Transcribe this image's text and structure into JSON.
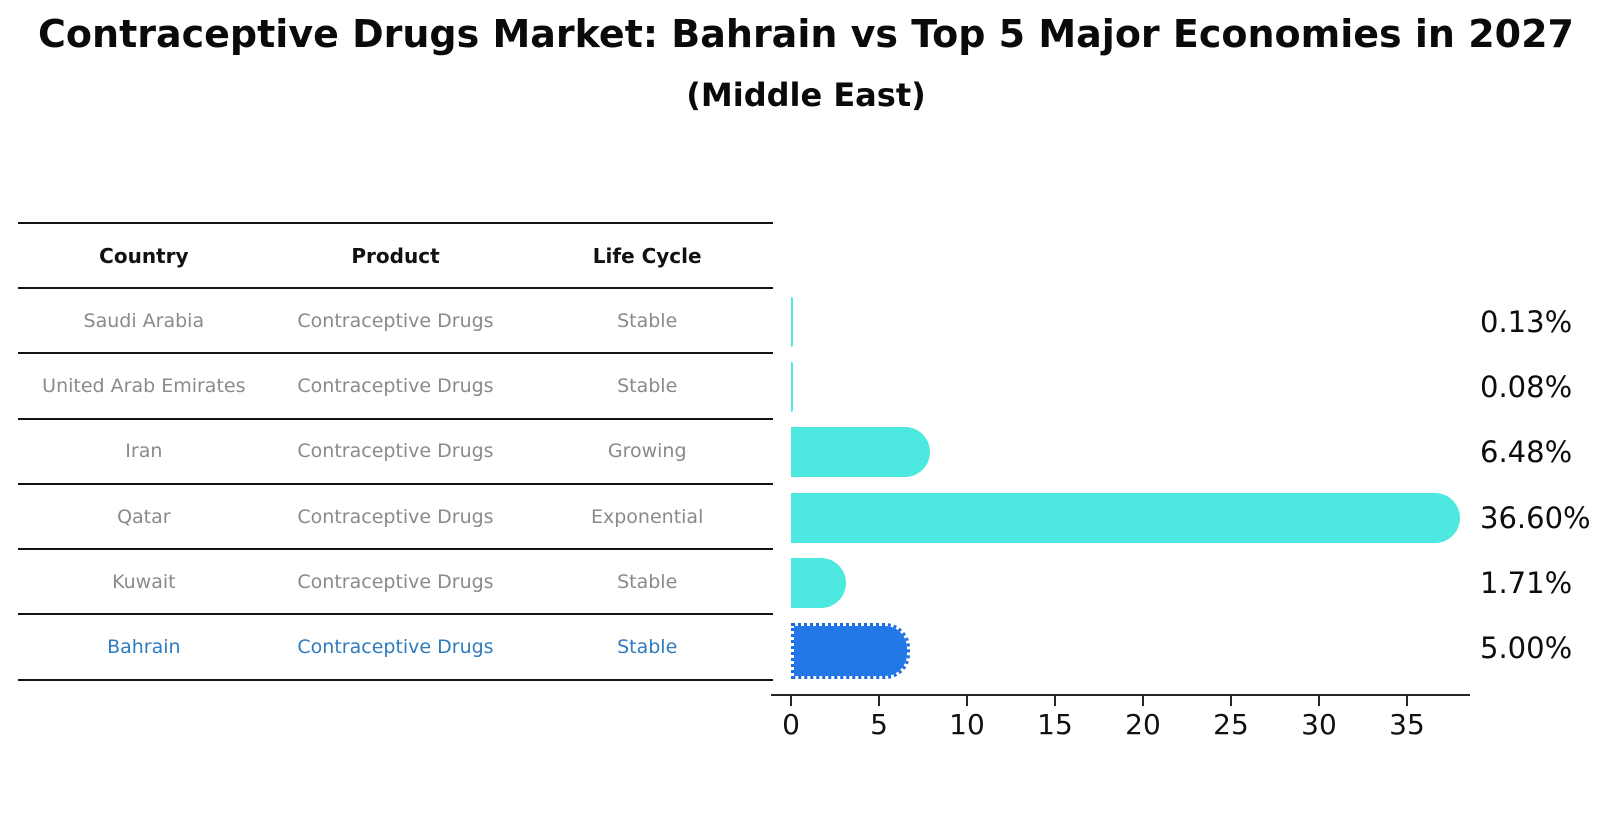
{
  "page": {
    "title": "Contraceptive Drugs Market: Bahrain vs Top 5 Major Economies in 2027",
    "subtitle": "(Middle East)"
  },
  "table": {
    "headers": [
      "Country",
      "Product",
      "Life Cycle"
    ],
    "rows": [
      {
        "country": "Saudi Arabia",
        "product": "Contraceptive Drugs",
        "life_cycle": "Stable",
        "highlighted": false
      },
      {
        "country": "United Arab Emirates",
        "product": "Contraceptive Drugs",
        "life_cycle": "Stable",
        "highlighted": false
      },
      {
        "country": "Iran",
        "product": "Contraceptive Drugs",
        "life_cycle": "Growing",
        "highlighted": false
      },
      {
        "country": "Qatar",
        "product": "Contraceptive Drugs",
        "life_cycle": "Exponential",
        "highlighted": false
      },
      {
        "country": "Kuwait",
        "product": "Contraceptive Drugs",
        "life_cycle": "Stable",
        "highlighted": false
      },
      {
        "country": "Bahrain",
        "product": "Contraceptive Drugs",
        "life_cycle": "Stable",
        "highlighted": true
      }
    ]
  },
  "chart_data": {
    "type": "bar",
    "orientation": "horizontal",
    "title": "Contraceptive Drugs Market: Bahrain vs Top 5 Major Economies in 2027",
    "subtitle": "(Middle East)",
    "categories": [
      "Saudi Arabia",
      "United Arab Emirates",
      "Iran",
      "Qatar",
      "Kuwait",
      "Bahrain"
    ],
    "values": [
      0.13,
      0.08,
      6.48,
      36.6,
      1.71,
      5.0
    ],
    "value_labels": [
      "0.13%",
      "0.08%",
      "6.48%",
      "36.60%",
      "1.71%",
      "5.00%"
    ],
    "xlim": [
      0,
      38.5
    ],
    "xticks": [
      0,
      5,
      10,
      15,
      20,
      25,
      30,
      35
    ],
    "xtick_labels": [
      "0",
      "5",
      "10",
      "15",
      "20",
      "25",
      "30",
      "35"
    ],
    "grid": false,
    "legend": false,
    "bar_color": "#4de8e0",
    "highlight_bar_color": "#2378e8",
    "highlight_text_color": "#2e7bbf",
    "axis_color": "#262626",
    "highlight_index": 5
  }
}
